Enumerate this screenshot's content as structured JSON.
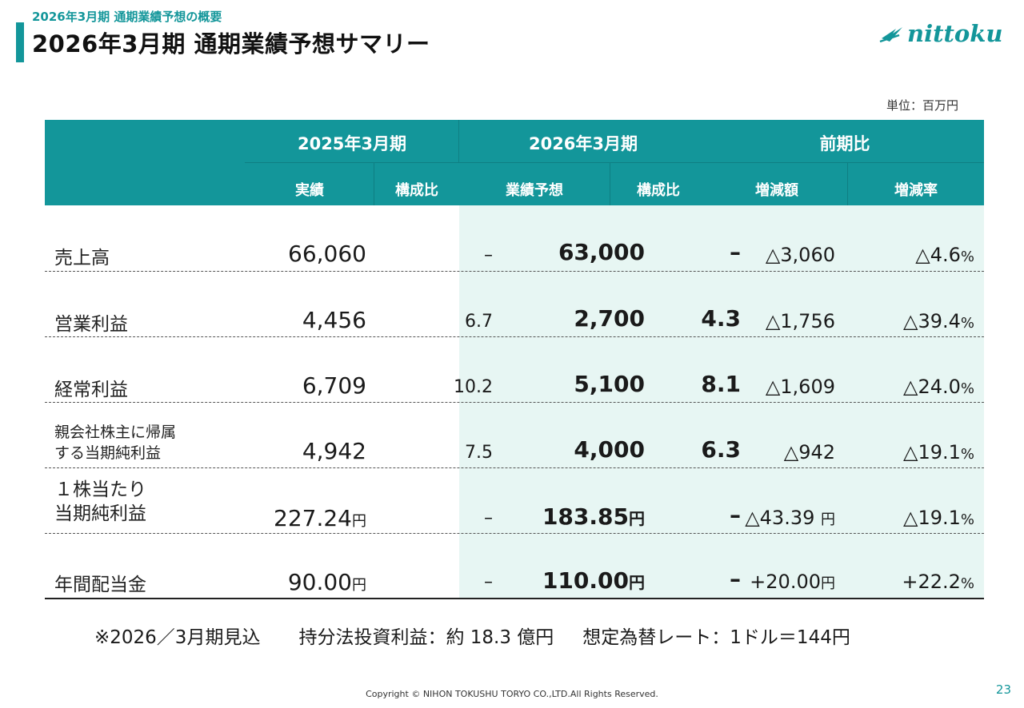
{
  "header": {
    "subtitle": "2026年3月期 通期業績予想の概要",
    "title": "2026年3月期 通期業績予想サマリー",
    "logo_text": "nittoku",
    "unit": "単位：百万円"
  },
  "table": {
    "groups": {
      "prev": "2025年3月期",
      "curr": "2026年3月期",
      "diff": "前期比"
    },
    "subheaders": {
      "actual": "実績",
      "actual_ratio": "構成比",
      "forecast": "業績予想",
      "forecast_ratio": "構成比",
      "change": "増減額",
      "change_rate": "増減率"
    },
    "rows": [
      {
        "label": "売上高",
        "actual": "66,060",
        "actual_ratio": "–",
        "forecast": "63,000",
        "forecast_ratio": "–",
        "change": "△3,060",
        "change_rate": "△4.6",
        "rate_unit": "%"
      },
      {
        "label": "営業利益",
        "actual": "4,456",
        "actual_ratio": "6.7",
        "forecast": "2,700",
        "forecast_ratio": "4.3",
        "change": "△1,756",
        "change_rate": "△39.4",
        "rate_unit": "%"
      },
      {
        "label": "経常利益",
        "actual": "6,709",
        "actual_ratio": "10.2",
        "forecast": "5,100",
        "forecast_ratio": "8.1",
        "change": "△1,609",
        "change_rate": "△24.0",
        "rate_unit": "%"
      },
      {
        "label_line1": "親会社株主に帰属",
        "label_line2": "する当期純利益",
        "actual": "4,942",
        "actual_ratio": "7.5",
        "forecast": "4,000",
        "forecast_ratio": "6.3",
        "change": "△942",
        "change_rate": "△19.1",
        "rate_unit": "%"
      },
      {
        "label_line1": "１株当たり",
        "label_line2": "当期純利益",
        "actual": "227.24",
        "actual_unit": "円",
        "actual_ratio": "–",
        "forecast": "183.85",
        "forecast_unit": "円",
        "forecast_ratio": "–",
        "change": "△43.39 ",
        "change_unit": "円",
        "change_rate": "△19.1",
        "rate_unit": "%"
      },
      {
        "label": "年間配当金",
        "actual": "90.00",
        "actual_unit": "円",
        "actual_ratio": "–",
        "forecast": "110.00",
        "forecast_unit": "円",
        "forecast_ratio": "–",
        "change": "+20.00",
        "change_unit": "円",
        "change_rate": "+22.2",
        "rate_unit": "%"
      }
    ]
  },
  "footnote": {
    "part1": "※2026／3月期見込",
    "part2": "持分法投資利益：約 18.3 億円",
    "part3": "想定為替レート：1ドル＝144円"
  },
  "footer": {
    "copyright": "Copyright © NIHON TOKUSHU TORYO CO.,LTD.All Rights Reserved.",
    "page_number": "23"
  },
  "colors": {
    "accent": "#13969a",
    "forecast_band": "#e7f6f3"
  }
}
